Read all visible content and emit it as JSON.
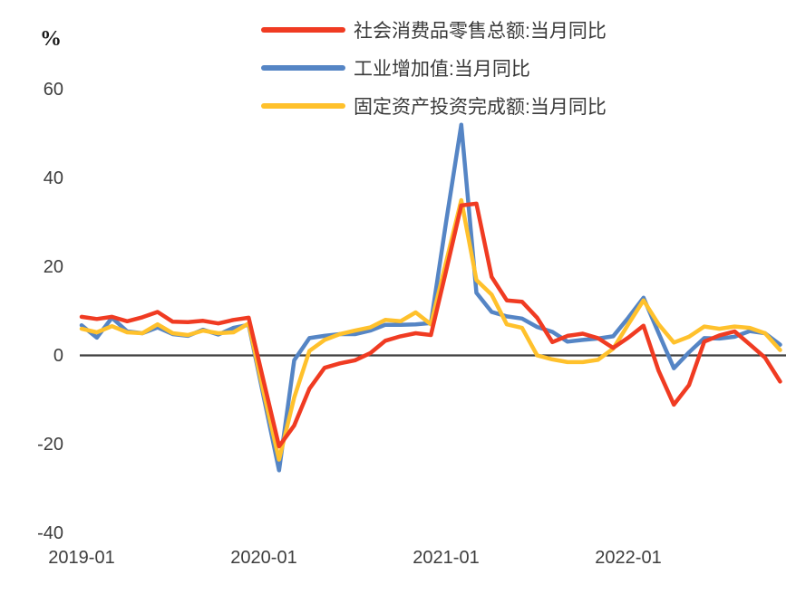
{
  "chart": {
    "unit_label": "%"
  },
  "chart_data": {
    "type": "line",
    "title": "",
    "xlabel": "",
    "ylabel": "%",
    "ylim": [
      -40,
      65
    ],
    "grid": false,
    "legend_position": "top-center",
    "zero_line": true,
    "axis_color": "#3f3f3f",
    "text_color": "#3d3d3d",
    "yticks": [
      60,
      40,
      20,
      0,
      -20,
      -40
    ],
    "xticks": [
      {
        "label": "2019-01",
        "month_index": 0
      },
      {
        "label": "2020-01",
        "month_index": 12
      },
      {
        "label": "2021-01",
        "month_index": 24
      },
      {
        "label": "2022-01",
        "month_index": 36
      }
    ],
    "x": [
      "2019-01",
      "2019-02",
      "2019-03",
      "2019-04",
      "2019-05",
      "2019-06",
      "2019-07",
      "2019-08",
      "2019-09",
      "2019-10",
      "2019-11",
      "2019-12",
      "2020-01",
      "2020-02",
      "2020-03",
      "2020-04",
      "2020-05",
      "2020-06",
      "2020-07",
      "2020-08",
      "2020-09",
      "2020-10",
      "2020-11",
      "2020-12",
      "2021-01",
      "2021-02",
      "2021-03",
      "2021-04",
      "2021-05",
      "2021-06",
      "2021-07",
      "2021-08",
      "2021-09",
      "2021-10",
      "2021-11",
      "2021-12",
      "2022-01",
      "2022-02",
      "2022-03",
      "2022-04",
      "2022-05",
      "2022-06",
      "2022-07",
      "2022-08",
      "2022-09",
      "2022-10",
      "2022-11"
    ],
    "series": [
      {
        "key": "retail-sales",
        "name": "社会消费品零售总额:当月同比",
        "color": "#F03B22",
        "values": [
          8.7,
          8.2,
          8.7,
          7.7,
          8.6,
          9.8,
          7.6,
          7.5,
          7.8,
          7.2,
          8.0,
          8.5,
          -6.0,
          -20.5,
          -15.8,
          -7.5,
          -2.8,
          -1.8,
          -1.1,
          0.5,
          3.3,
          4.3,
          5.0,
          4.6,
          19.0,
          33.8,
          34.2,
          17.7,
          12.4,
          12.1,
          8.5,
          3.0,
          4.4,
          4.9,
          3.9,
          1.7,
          4.0,
          6.7,
          -3.5,
          -11.1,
          -6.7,
          3.1,
          4.5,
          5.4,
          2.5,
          -0.5,
          -5.9
        ]
      },
      {
        "key": "industrial-value-added",
        "name": "工业增加值:当月同比",
        "color": "#5585C5",
        "values": [
          6.8,
          4.0,
          8.5,
          5.4,
          5.0,
          6.3,
          4.8,
          4.4,
          5.8,
          4.7,
          6.2,
          6.9,
          -9.5,
          -25.9,
          -1.1,
          3.9,
          4.4,
          4.8,
          4.8,
          5.6,
          6.9,
          6.9,
          7.0,
          7.3,
          30.0,
          52.0,
          14.1,
          9.8,
          8.8,
          8.3,
          6.4,
          5.3,
          3.1,
          3.5,
          3.8,
          4.3,
          8.5,
          13.0,
          5.0,
          -2.9,
          0.7,
          3.9,
          3.8,
          4.2,
          5.5,
          5.0,
          2.4
        ]
      },
      {
        "key": "fixed-asset-investment",
        "name": "固定资产投资完成额:当月同比",
        "color": "#FFC12C",
        "values": [
          6.0,
          5.2,
          6.6,
          5.2,
          5.0,
          7.0,
          5.0,
          4.6,
          5.6,
          5.0,
          5.2,
          7.2,
          -8.5,
          -23.5,
          -9.5,
          1.0,
          3.5,
          4.8,
          5.6,
          6.3,
          8.0,
          7.7,
          9.7,
          7.0,
          21.0,
          35.0,
          17.0,
          13.7,
          7.0,
          6.2,
          0.0,
          -0.9,
          -1.5,
          -1.5,
          -1.0,
          1.5,
          7.0,
          12.4,
          7.0,
          2.9,
          4.2,
          6.5,
          6.0,
          6.5,
          6.2,
          5.0,
          1.2
        ]
      }
    ]
  }
}
